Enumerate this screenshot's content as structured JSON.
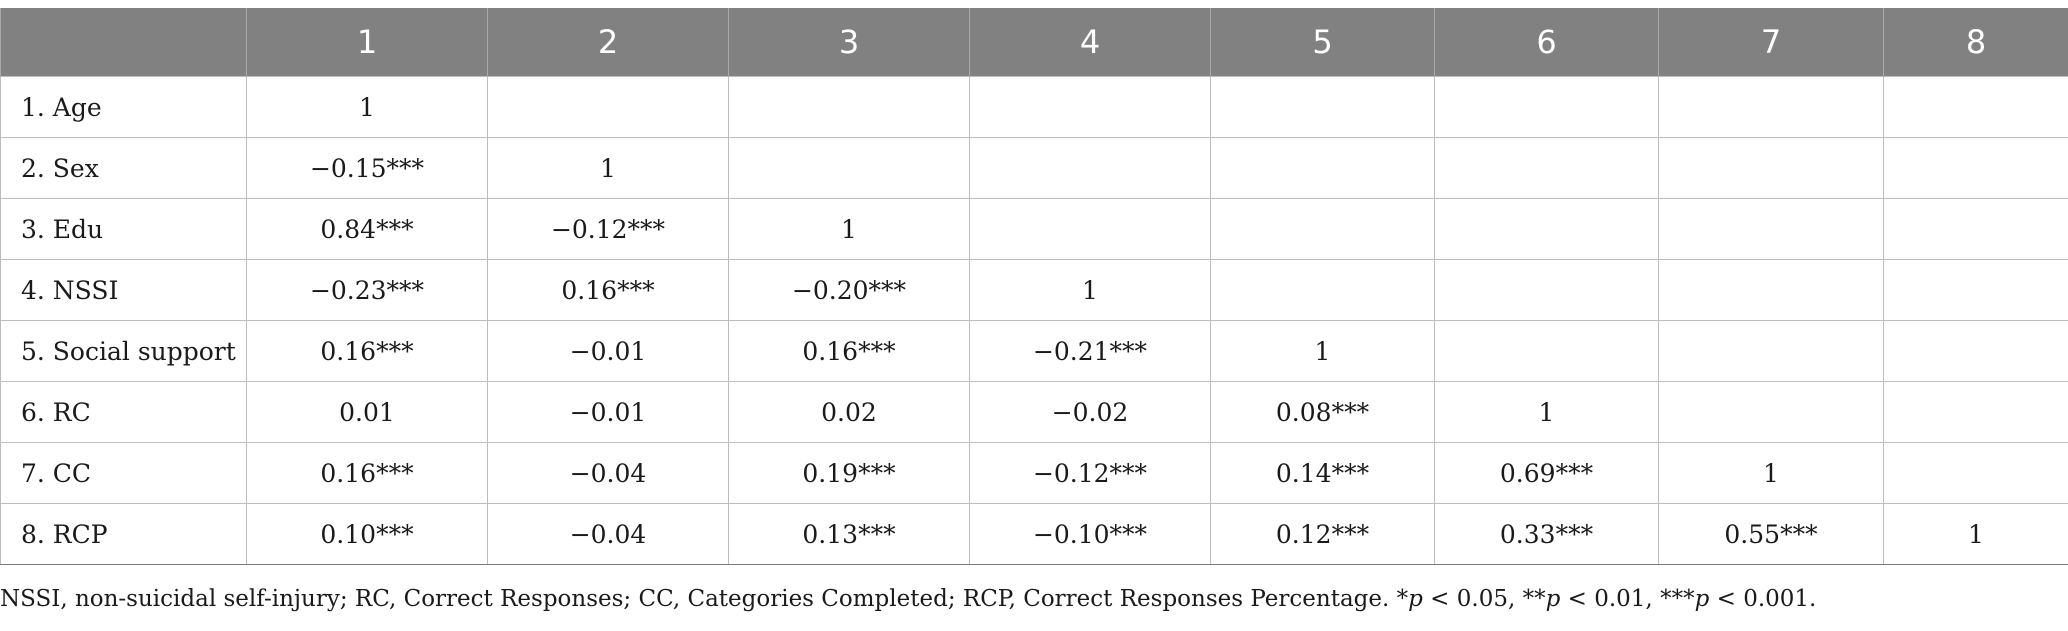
{
  "table": {
    "headers": [
      "",
      "1",
      "2",
      "3",
      "4",
      "5",
      "6",
      "7",
      "8"
    ],
    "rows": [
      {
        "label": "1. Age",
        "cells": [
          "1",
          "",
          "",
          "",
          "",
          "",
          "",
          ""
        ]
      },
      {
        "label": "2. Sex",
        "cells": [
          "−0.15***",
          "1",
          "",
          "",
          "",
          "",
          "",
          ""
        ]
      },
      {
        "label": "3. Edu",
        "cells": [
          "0.84***",
          "−0.12***",
          "1",
          "",
          "",
          "",
          "",
          ""
        ]
      },
      {
        "label": "4. NSSI",
        "cells": [
          "−0.23***",
          "0.16***",
          "−0.20***",
          "1",
          "",
          "",
          "",
          ""
        ]
      },
      {
        "label": "5. Social support",
        "cells": [
          "0.16***",
          "−0.01",
          "0.16***",
          "−0.21***",
          "1",
          "",
          "",
          ""
        ]
      },
      {
        "label": "6. RC",
        "cells": [
          "0.01",
          "−0.01",
          "0.02",
          "−0.02",
          "0.08***",
          "1",
          "",
          ""
        ]
      },
      {
        "label": "7. CC",
        "cells": [
          "0.16***",
          "−0.04",
          "0.19***",
          "−0.12***",
          "0.14***",
          "0.69***",
          "1",
          ""
        ]
      },
      {
        "label": "8. RCP",
        "cells": [
          "0.10***",
          "−0.04",
          "0.13***",
          "−0.10***",
          "0.12***",
          "0.33***",
          "0.55***",
          "1"
        ]
      }
    ]
  },
  "footnote": {
    "text": "NSSI, non-suicidal self-injury; RC, Correct Responses; CC, Categories Completed; RCP, Correct Responses Percentage. ",
    "sig1_stars": "*",
    "sig1_p": "p",
    "sig1_rest": " < 0.05, ",
    "sig2_stars": "**",
    "sig2_p": "p",
    "sig2_rest": " < 0.01, ",
    "sig3_stars": "***",
    "sig3_p": "p",
    "sig3_rest": " < 0.001."
  }
}
